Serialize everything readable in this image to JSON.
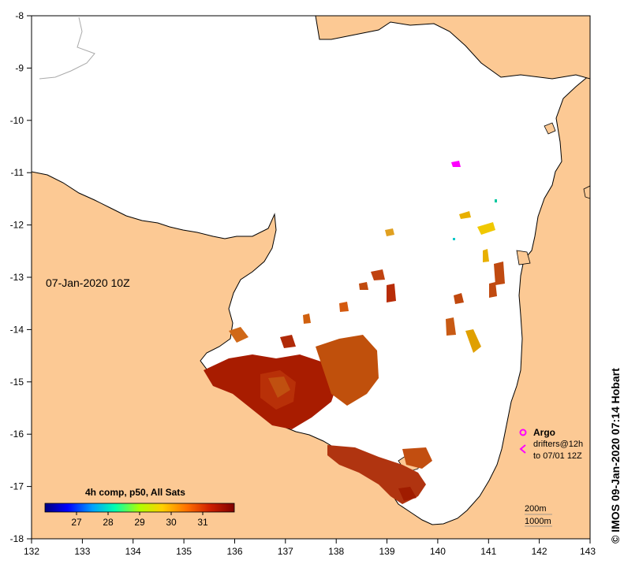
{
  "map": {
    "timestamp": "07-Jan-2020 10Z",
    "composite_label": "4h comp, p50, All Sats",
    "colorbar": {
      "ticks": [
        "27",
        "28",
        "29",
        "30",
        "31"
      ],
      "min": 26,
      "max": 32
    },
    "x_ticks": [
      "132",
      "133",
      "134",
      "135",
      "136",
      "137",
      "138",
      "139",
      "140",
      "141",
      "142",
      "143"
    ],
    "y_ticks": [
      "-8",
      "-9",
      "-10",
      "-11",
      "-12",
      "-13",
      "-14",
      "-15",
      "-16",
      "-17",
      "-18"
    ],
    "legend": {
      "argo": "Argo",
      "drifters_line1": "drifters@12h",
      "drifters_line2": "to 07/01 12Z",
      "contour_200": "200m",
      "contour_1000": "1000m"
    },
    "credit": "© IMOS 09-Jan-2020 07:14 Hobart",
    "colors": {
      "land": "#fcc994",
      "sea": "#ffffff",
      "argo": "#ff00ff"
    }
  }
}
